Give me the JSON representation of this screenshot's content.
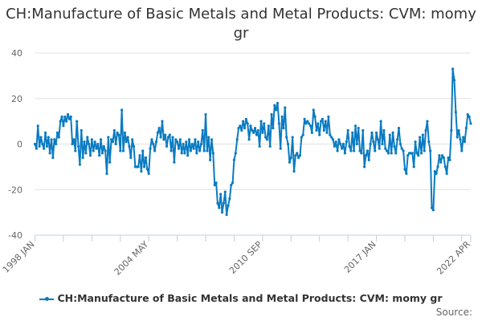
{
  "chart_data": {
    "type": "line",
    "title": "CH:Manufacture of Basic Metals and Metal Products: CVM: momy gr",
    "xlabel": "",
    "ylabel": "",
    "start": "1998 JAN",
    "end": "2022 APR",
    "frequency": "monthly",
    "x_tick_labels": [
      "1998 JAN",
      "2004 MAY",
      "2010 SEP",
      "2017 JAN",
      "2022 APR"
    ],
    "y_ticks": [
      40,
      20,
      0,
      -20,
      -40
    ],
    "ylim": [
      -40,
      40
    ],
    "grid": true,
    "legend_position": "bottom",
    "color": "#0a7bc1",
    "series": [
      {
        "name": "CH:Manufacture of Basic Metals and Metal Products: CVM: momy gr",
        "values": [
          0,
          -2,
          8,
          -1,
          3,
          0,
          -2,
          5,
          -1,
          3,
          -4,
          2,
          -6,
          2,
          0,
          5,
          3,
          10,
          12,
          8,
          12,
          10,
          13,
          11,
          12,
          0,
          2,
          -3,
          10,
          -1,
          -9,
          6,
          -6,
          1,
          -4,
          3,
          0,
          -5,
          2,
          -3,
          1,
          -2,
          0,
          -5,
          2,
          -4,
          -1,
          -3,
          -13,
          3,
          -8,
          2,
          1,
          6,
          0,
          5,
          4,
          -3,
          15,
          -3,
          5,
          1,
          3,
          -1,
          -6,
          2,
          -1,
          -10,
          -10,
          -10,
          -5,
          -12,
          -3,
          -10,
          -6,
          -11,
          -13,
          -2,
          2,
          0,
          -3,
          1,
          5,
          7,
          3,
          10,
          2,
          4,
          -1,
          3,
          4,
          -3,
          3,
          -8,
          2,
          1,
          -2,
          2,
          -4,
          0,
          -4,
          1,
          -5,
          2,
          -3,
          0,
          -2,
          2,
          -4,
          1,
          -3,
          0,
          6,
          -3,
          13,
          -3,
          3,
          -7,
          2,
          -4,
          -18,
          -17,
          -26,
          -28,
          -22,
          -30,
          -26,
          -21,
          -31,
          -27,
          -24,
          -18,
          -17,
          -7,
          -4,
          2,
          7,
          8,
          6,
          10,
          7,
          11,
          9,
          2,
          8,
          6,
          5,
          7,
          4,
          6,
          -1,
          10,
          5,
          9,
          3,
          2,
          8,
          -1,
          13,
          7,
          17,
          15,
          18,
          9,
          -2,
          12,
          7,
          16,
          3,
          0,
          -8,
          -6,
          3,
          -12,
          -5,
          -4,
          -6,
          -5,
          3,
          4,
          11,
          9,
          10,
          9,
          8,
          5,
          15,
          12,
          6,
          9,
          4,
          10,
          11,
          6,
          10,
          5,
          12,
          4,
          3,
          2,
          -1,
          1,
          -3,
          2,
          0,
          -2,
          0,
          -4,
          1,
          6,
          -1,
          -3,
          5,
          -3,
          8,
          0,
          7,
          -3,
          -4,
          6,
          -10,
          -5,
          -3,
          -7,
          0,
          5,
          1,
          -3,
          5,
          2,
          -2,
          10,
          0,
          6,
          -2,
          -3,
          -4,
          4,
          -4,
          5,
          -1,
          -4,
          2,
          7,
          0,
          -2,
          -3,
          -11,
          -13,
          -5,
          -4,
          -4,
          -4,
          -10,
          1,
          -4,
          -5,
          3,
          -4,
          4,
          -3,
          6,
          10,
          1,
          -3,
          -28,
          -29,
          -12,
          -13,
          -10,
          -5,
          -8,
          -5,
          -6,
          -10,
          -13,
          -6,
          -7,
          6,
          33,
          28,
          14,
          3,
          6,
          2,
          -3,
          3,
          1,
          7,
          13,
          12,
          9
        ]
      }
    ]
  },
  "source_label": "Source:"
}
